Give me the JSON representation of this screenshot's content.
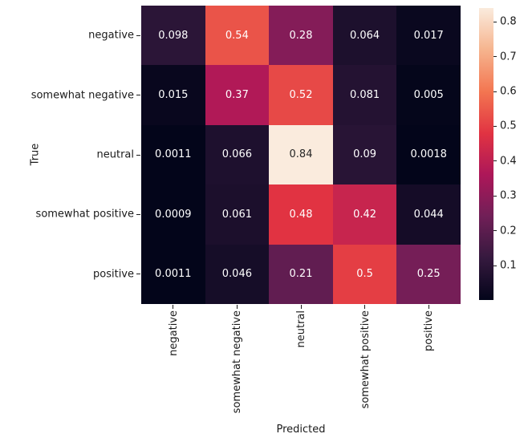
{
  "chart_data": {
    "type": "heatmap",
    "title": "",
    "xlabel": "Predicted",
    "ylabel": "True",
    "x_categories": [
      "negative",
      "somewhat negative",
      "neutral",
      "somewhat positive",
      "positive"
    ],
    "y_categories": [
      "negative",
      "somewhat negative",
      "neutral",
      "somewhat positive",
      "positive"
    ],
    "matrix": [
      [
        0.098,
        0.54,
        0.28,
        0.064,
        0.017
      ],
      [
        0.015,
        0.37,
        0.52,
        0.081,
        0.005
      ],
      [
        0.0011,
        0.066,
        0.84,
        0.09,
        0.0018
      ],
      [
        0.0009,
        0.061,
        0.48,
        0.42,
        0.044
      ],
      [
        0.0011,
        0.046,
        0.21,
        0.5,
        0.25
      ]
    ],
    "vmin": 0.0009,
    "vmax": 0.84,
    "grid": false,
    "background": "#ffffff",
    "annotation_light_color": "#ffffff",
    "annotation_dark_color": "#262626",
    "tick_color": "#1a1a1a",
    "colormap": {
      "name": "rocket",
      "anchors": [
        {
          "t": 0.0,
          "color": "#03051A"
        },
        {
          "t": 0.143,
          "color": "#35193E"
        },
        {
          "t": 0.286,
          "color": "#701F57"
        },
        {
          "t": 0.429,
          "color": "#AD1759"
        },
        {
          "t": 0.571,
          "color": "#E13342"
        },
        {
          "t": 0.714,
          "color": "#F37651"
        },
        {
          "t": 0.857,
          "color": "#F6B48E"
        },
        {
          "t": 1.0,
          "color": "#FAEBDD"
        }
      ]
    },
    "colorbar": {
      "position": "right",
      "ticks": [
        0.1,
        0.2,
        0.3,
        0.4,
        0.5,
        0.6,
        0.7,
        0.8
      ],
      "tick_labels": [
        "0.1",
        "0.2",
        "0.3",
        "0.4",
        "0.5",
        "0.6",
        "0.7",
        "0.8"
      ]
    }
  }
}
